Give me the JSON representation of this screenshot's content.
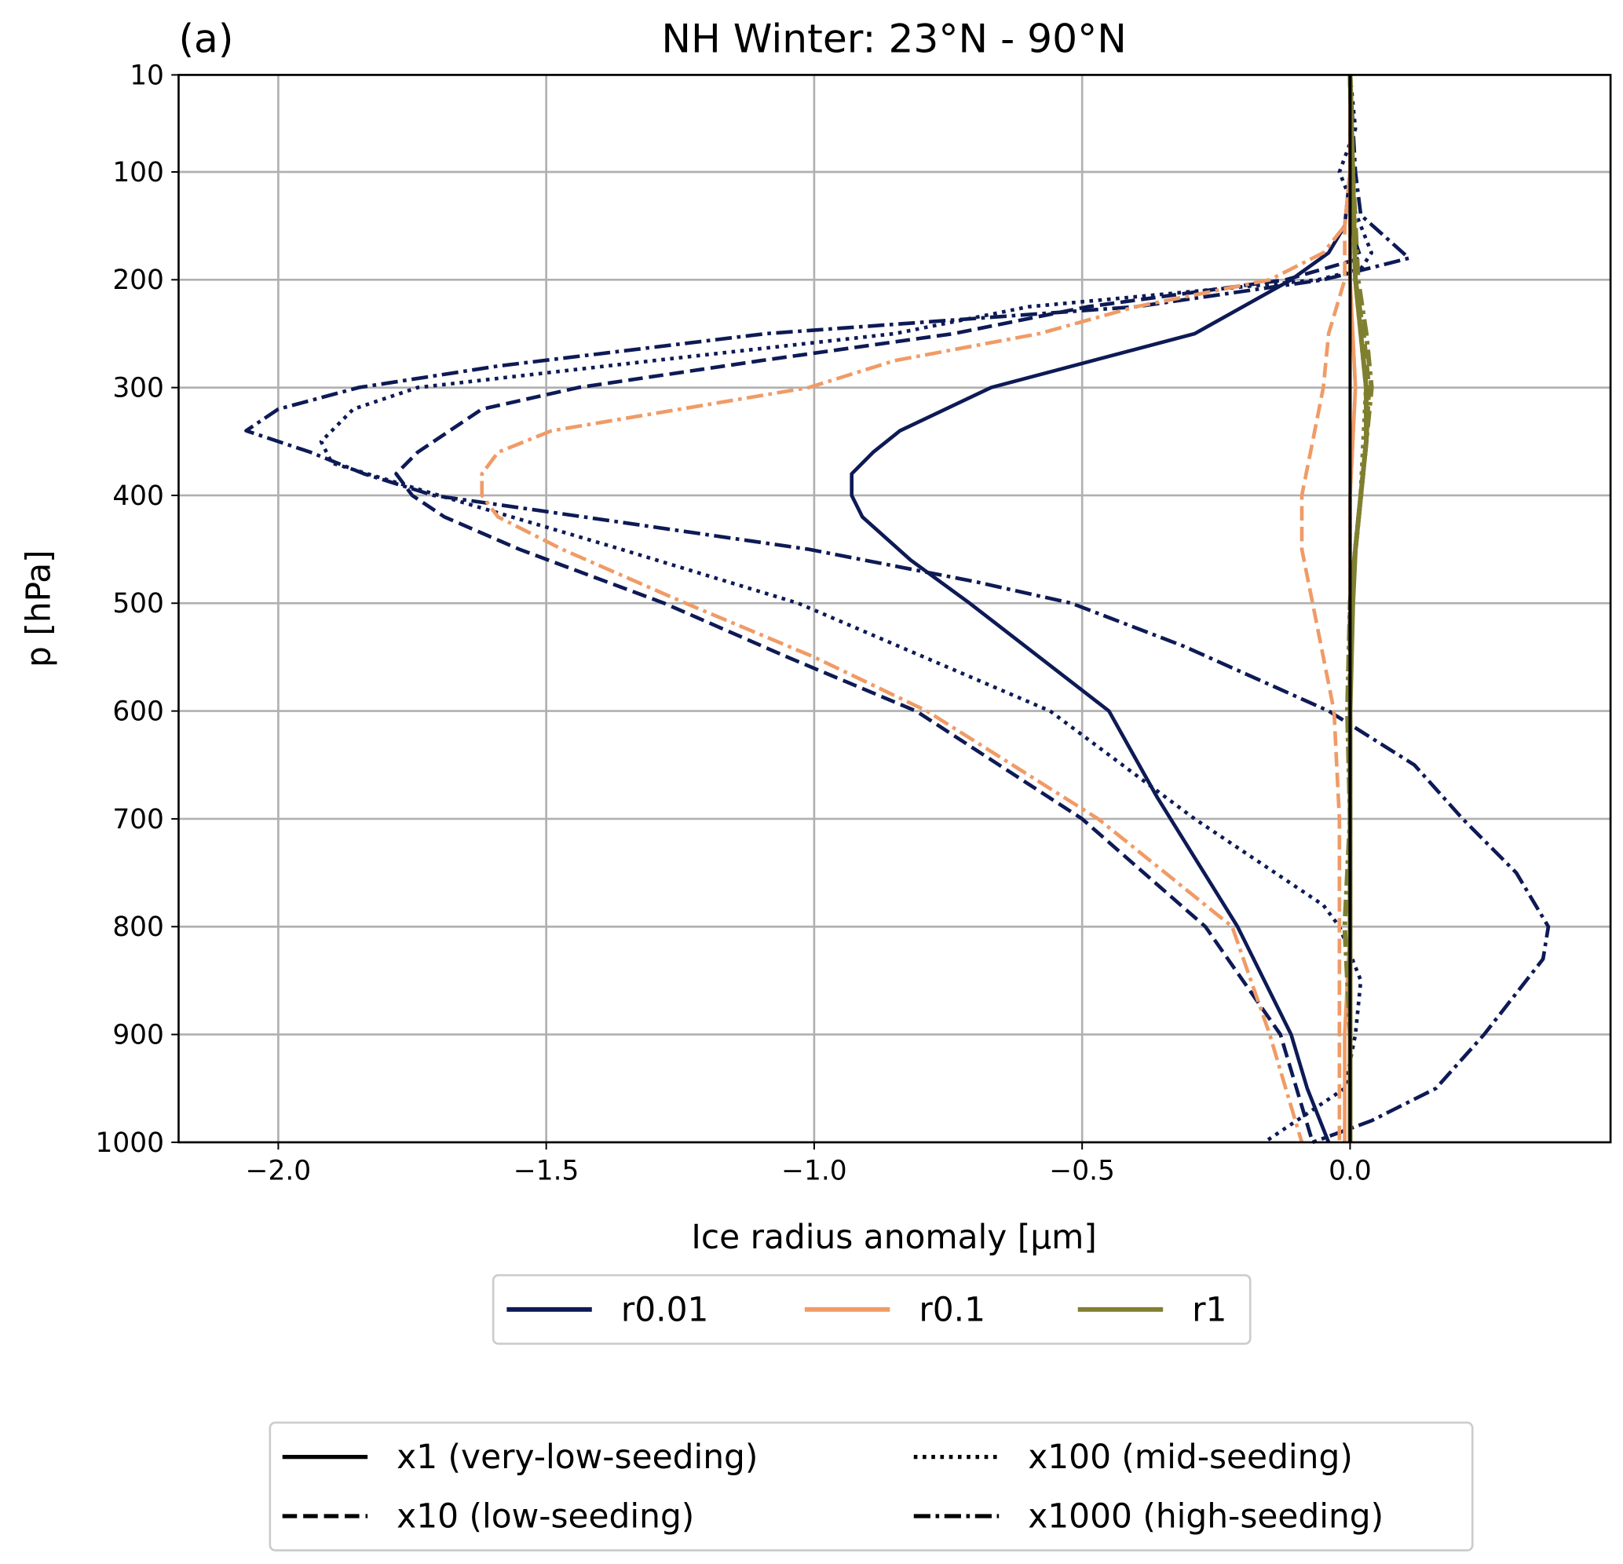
{
  "chart_data": {
    "type": "line",
    "panel_label": "(a)",
    "title": "NH Winter: 23°N - 90°N",
    "xlabel": "Ice radius anomaly [µm]",
    "ylabel": "p [hPa]",
    "xlim": [
      -2.186,
      0.486
    ],
    "ylim": [
      1000,
      10
    ],
    "y_inverted": true,
    "grid": true,
    "xticks": [
      -2.0,
      -1.5,
      -1.0,
      -0.5,
      0.0
    ],
    "xtick_labels": [
      "−2.0",
      "−1.5",
      "−1.0",
      "−0.5",
      "0.0"
    ],
    "yticks": [
      10,
      100,
      200,
      300,
      400,
      500,
      600,
      700,
      800,
      900,
      1000
    ],
    "ytick_labels": [
      "10",
      "100",
      "200",
      "300",
      "400",
      "500",
      "600",
      "700",
      "800",
      "900",
      "1000"
    ],
    "zero_line": {
      "x": 0.0,
      "color": "#000000"
    },
    "colors": {
      "r0.01": "#0d1a55",
      "r0.1": "#f09b66",
      "r1": "#7f7f30"
    },
    "color_legend": {
      "position": "below-center",
      "entries": [
        "r0.01",
        "r0.1",
        "r1"
      ]
    },
    "style_legend": {
      "position": "bottom-center",
      "entries": [
        {
          "style": "solid",
          "label": "x1 (very-low-seeding)"
        },
        {
          "style": "dotted",
          "label": "x100 (mid-seeding)"
        },
        {
          "style": "dashed",
          "label": "x10 (low-seeding)"
        },
        {
          "style": "dashdot",
          "label": "x1000 (high-seeding)"
        }
      ]
    },
    "series": [
      {
        "name": "r0.01 x1",
        "group": "r0.01",
        "style": "solid",
        "p": [
          10,
          100,
          150,
          175,
          200,
          250,
          300,
          340,
          360,
          380,
          400,
          420,
          460,
          500,
          600,
          680,
          800,
          900,
          950,
          1000
        ],
        "x": [
          0,
          0,
          -0.01,
          -0.04,
          -0.11,
          -0.29,
          -0.67,
          -0.84,
          -0.89,
          -0.93,
          -0.93,
          -0.91,
          -0.82,
          -0.71,
          -0.45,
          -0.36,
          -0.21,
          -0.11,
          -0.08,
          -0.04
        ]
      },
      {
        "name": "r0.01 x10",
        "group": "r0.01",
        "style": "dashed",
        "p": [
          10,
          100,
          150,
          180,
          200,
          225,
          250,
          275,
          300,
          320,
          360,
          380,
          400,
          420,
          450,
          500,
          550,
          600,
          700,
          800,
          900,
          950,
          1000
        ],
        "x": [
          0,
          0,
          0,
          0.02,
          -0.12,
          -0.49,
          -0.74,
          -1.1,
          -1.44,
          -1.62,
          -1.74,
          -1.78,
          -1.75,
          -1.69,
          -1.55,
          -1.28,
          -1.05,
          -0.81,
          -0.5,
          -0.27,
          -0.13,
          -0.1,
          -0.07
        ]
      },
      {
        "name": "r0.01 x100",
        "group": "r0.01",
        "style": "dotted",
        "p": [
          10,
          60,
          100,
          150,
          175,
          190,
          200,
          225,
          250,
          275,
          300,
          320,
          350,
          370,
          400,
          450,
          500,
          600,
          700,
          780,
          800,
          850,
          900,
          950,
          1000
        ],
        "x": [
          0,
          0.01,
          -0.02,
          0.02,
          0.04,
          0.02,
          -0.06,
          -0.6,
          -0.85,
          -1.3,
          -1.74,
          -1.86,
          -1.92,
          -1.9,
          -1.7,
          -1.36,
          -1.03,
          -0.56,
          -0.29,
          -0.05,
          -0.02,
          0.02,
          0.01,
          -0.01,
          -0.16
        ]
      },
      {
        "name": "r0.01 x1000",
        "group": "r0.01",
        "style": "dashdot",
        "p": [
          10,
          100,
          140,
          180,
          200,
          225,
          250,
          280,
          300,
          320,
          340,
          360,
          380,
          400,
          420,
          450,
          480,
          500,
          540,
          600,
          650,
          700,
          750,
          800,
          830,
          900,
          950,
          980,
          1000
        ],
        "x": [
          0,
          0.01,
          0.02,
          0.11,
          -0.05,
          -0.4,
          -1.09,
          -1.59,
          -1.85,
          -2.0,
          -2.06,
          -1.94,
          -1.84,
          -1.71,
          -1.43,
          -1.01,
          -0.7,
          -0.52,
          -0.31,
          -0.04,
          0.12,
          0.21,
          0.31,
          0.37,
          0.36,
          0.25,
          0.16,
          0.04,
          -0.07
        ]
      },
      {
        "name": "r0.1 x1",
        "group": "r0.1",
        "style": "solid",
        "p": [
          10,
          100,
          200,
          300,
          400,
          500,
          600,
          700,
          800,
          900,
          1000
        ],
        "x": [
          0,
          0,
          0,
          0.01,
          0,
          0,
          0,
          0,
          0,
          -0.01,
          -0.01
        ]
      },
      {
        "name": "r0.1 x10",
        "group": "r0.1",
        "style": "dashed",
        "p": [
          10,
          100,
          150,
          200,
          250,
          300,
          350,
          400,
          450,
          500,
          550,
          600,
          700,
          800,
          900,
          950,
          1000
        ],
        "x": [
          0,
          0,
          -0.01,
          -0.01,
          -0.04,
          -0.05,
          -0.07,
          -0.09,
          -0.09,
          -0.07,
          -0.05,
          -0.03,
          -0.02,
          -0.02,
          -0.02,
          -0.02,
          -0.02
        ]
      },
      {
        "name": "r0.1 x100",
        "group": "r0.1",
        "style": "dotted",
        "p": [
          10,
          100,
          200,
          300,
          400,
          500,
          600,
          700,
          800,
          900,
          1000
        ],
        "x": [
          0,
          0,
          0,
          0.01,
          0,
          0,
          0,
          0,
          0,
          0,
          0
        ]
      },
      {
        "name": "r0.1 x1000",
        "group": "r0.1",
        "style": "dashdot",
        "p": [
          10,
          100,
          150,
          175,
          200,
          225,
          250,
          275,
          300,
          340,
          360,
          380,
          400,
          420,
          450,
          500,
          550,
          600,
          700,
          800,
          900,
          950,
          1000
        ],
        "x": [
          0,
          0,
          -0.01,
          -0.05,
          -0.15,
          -0.4,
          -0.58,
          -0.85,
          -1.01,
          -1.49,
          -1.59,
          -1.62,
          -1.62,
          -1.59,
          -1.47,
          -1.24,
          -1.0,
          -0.79,
          -0.47,
          -0.22,
          -0.15,
          -0.12,
          -0.09
        ]
      },
      {
        "name": "r1 x1",
        "group": "r1",
        "style": "solid",
        "p": [
          10,
          100,
          200,
          250,
          300,
          350,
          400,
          450,
          500,
          600,
          700,
          800,
          900,
          1000
        ],
        "x": [
          0,
          0.005,
          0.01,
          0.02,
          0.03,
          0.03,
          0.02,
          0.01,
          0.005,
          0,
          0,
          0,
          0,
          0
        ]
      },
      {
        "name": "r1 x10",
        "group": "r1",
        "style": "dashed",
        "p": [
          10,
          100,
          200,
          250,
          300,
          350,
          400,
          450,
          500,
          600,
          700,
          800,
          900,
          1000
        ],
        "x": [
          0,
          0.005,
          0.01,
          0.025,
          0.035,
          0.03,
          0.02,
          0.01,
          0,
          0,
          0,
          0,
          0,
          0
        ]
      },
      {
        "name": "r1 x100",
        "group": "r1",
        "style": "dotted",
        "p": [
          10,
          100,
          200,
          250,
          300,
          350,
          400,
          450,
          500,
          600,
          700,
          800,
          900,
          1000
        ],
        "x": [
          0,
          0.005,
          0.01,
          0.02,
          0.03,
          0.025,
          0.02,
          0.01,
          0,
          0,
          0,
          0,
          0,
          0
        ]
      },
      {
        "name": "r1 x1000",
        "group": "r1",
        "style": "dashdot",
        "p": [
          10,
          100,
          200,
          250,
          300,
          350,
          400,
          450,
          500,
          600,
          700,
          800,
          900,
          1000
        ],
        "x": [
          0,
          0.005,
          0.015,
          0.03,
          0.04,
          0.03,
          0.02,
          0.01,
          0,
          -0.005,
          0,
          -0.01,
          0,
          0
        ]
      }
    ]
  }
}
